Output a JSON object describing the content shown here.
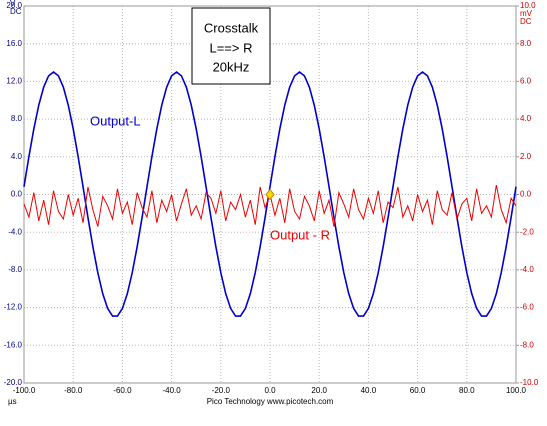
{
  "chart_data": {
    "type": "line",
    "annotations": [
      "Crosstalk",
      "L==> R",
      "20kHz"
    ],
    "y_label": [
      "V",
      "DC"
    ],
    "y2_label": [
      "mV",
      "DC"
    ],
    "x_label": "µs",
    "footer": "Pico Technology  www.picotech.com",
    "grid": true,
    "xlim": [
      -100,
      100
    ],
    "xticks": [
      {
        "value": -100,
        "label": "-100.0"
      },
      {
        "value": -80,
        "label": "-80.0"
      },
      {
        "value": -60,
        "label": "-60.0"
      },
      {
        "value": -40,
        "label": "-40.0"
      },
      {
        "value": -20,
        "label": "-20.0"
      },
      {
        "value": 0,
        "label": "0.0"
      },
      {
        "value": 20,
        "label": "20.0"
      },
      {
        "value": 40,
        "label": "40.0"
      },
      {
        "value": 60,
        "label": "60.0"
      },
      {
        "value": 80,
        "label": "80.0"
      },
      {
        "value": 100,
        "label": "100.0"
      }
    ],
    "ylim": [
      -20,
      20
    ],
    "yticks": [
      {
        "value": 20,
        "label": "20.0"
      },
      {
        "value": 16,
        "label": "16.0"
      },
      {
        "value": 12,
        "label": "12.0"
      },
      {
        "value": 8,
        "label": "8.0"
      },
      {
        "value": 4,
        "label": "4.0"
      },
      {
        "value": 0,
        "label": "0.0"
      },
      {
        "value": -4,
        "label": "-4.0"
      },
      {
        "value": -8,
        "label": "-8.0"
      },
      {
        "value": -12,
        "label": "-12.0"
      },
      {
        "value": -16,
        "label": "-16.0"
      },
      {
        "value": -20,
        "label": "-20.0"
      }
    ],
    "y2lim": [
      -10,
      10
    ],
    "y2ticks": [
      {
        "value": 10,
        "label": "10.0"
      },
      {
        "value": 8,
        "label": "8.0"
      },
      {
        "value": 6,
        "label": "6.0"
      },
      {
        "value": 4,
        "label": "4.0"
      },
      {
        "value": 2,
        "label": "2.0"
      },
      {
        "value": 0,
        "label": "0.0"
      },
      {
        "value": -2,
        "label": "-2.0"
      },
      {
        "value": -4,
        "label": "-4.0"
      },
      {
        "value": -6,
        "label": "-6.0"
      },
      {
        "value": -8,
        "label": "-8.0"
      },
      {
        "value": -10,
        "label": "-10.0"
      }
    ],
    "x": [
      -100,
      -98,
      -96,
      -94,
      -92,
      -90,
      -88,
      -86,
      -84,
      -82,
      -80,
      -78,
      -76,
      -74,
      -72,
      -70,
      -68,
      -66,
      -64,
      -62,
      -60,
      -58,
      -56,
      -54,
      -52,
      -50,
      -48,
      -46,
      -44,
      -42,
      -40,
      -38,
      -36,
      -34,
      -32,
      -30,
      -28,
      -26,
      -24,
      -22,
      -20,
      -18,
      -16,
      -14,
      -12,
      -10,
      -8,
      -6,
      -4,
      -2,
      0,
      2,
      4,
      6,
      8,
      10,
      12,
      14,
      16,
      18,
      20,
      22,
      24,
      26,
      28,
      30,
      32,
      34,
      36,
      38,
      40,
      42,
      44,
      46,
      48,
      50,
      52,
      54,
      56,
      58,
      60,
      62,
      64,
      66,
      68,
      70,
      72,
      74,
      76,
      78,
      80,
      82,
      84,
      86,
      88,
      90,
      92,
      94,
      96,
      98,
      100
    ],
    "series": [
      {
        "name": "Output-L",
        "color": "#0000cc",
        "values": [
          0.82,
          4.02,
          6.97,
          9.48,
          11.39,
          12.59,
          13,
          12.59,
          11.39,
          9.48,
          6.97,
          4.02,
          0.82,
          -2.44,
          -5.54,
          -8.29,
          -10.52,
          -12.09,
          -12.9,
          -12.9,
          -12.09,
          -10.52,
          -8.29,
          -5.54,
          -2.44,
          0.82,
          4.02,
          6.97,
          9.48,
          11.39,
          12.59,
          13,
          12.59,
          11.39,
          9.48,
          6.97,
          4.02,
          0.82,
          -2.44,
          -5.54,
          -8.29,
          -10.52,
          -12.09,
          -12.9,
          -12.9,
          -12.09,
          -10.52,
          -8.29,
          -5.54,
          -2.44,
          0.82,
          4.02,
          6.97,
          9.48,
          11.39,
          12.59,
          13,
          12.59,
          11.39,
          9.48,
          6.97,
          4.02,
          0.82,
          -2.44,
          -5.54,
          -8.29,
          -10.52,
          -12.09,
          -12.9,
          -12.9,
          -12.09,
          -10.52,
          -8.29,
          -5.54,
          -2.44,
          0.82,
          4.02,
          6.97,
          9.48,
          11.39,
          12.59,
          13,
          12.59,
          11.39,
          9.48,
          6.97,
          4.02,
          0.82,
          -2.44,
          -5.54,
          -8.29,
          -10.52,
          -12.09,
          -12.9,
          -12.9,
          -12.09,
          -10.52,
          -8.29,
          -5.54,
          -2.44,
          0.82
        ]
      },
      {
        "name": "Output - R",
        "color": "#ee0000",
        "axis": "y2",
        "values": [
          -0.5,
          -1.2,
          0.1,
          -1.4,
          -0.3,
          -1.6,
          0.2,
          -0.9,
          -1.3,
          0.0,
          -1.1,
          -0.2,
          -1.5,
          0.4,
          -0.8,
          -1.7,
          -0.1,
          -0.6,
          -1.3,
          0.3,
          -1.0,
          -0.4,
          -1.6,
          0.1,
          -0.7,
          -1.2,
          0.2,
          -1.5,
          -0.3,
          -0.9,
          0.0,
          -1.4,
          -0.5,
          0.3,
          -1.1,
          -0.6,
          -1.3,
          0.1,
          -0.2,
          -1.0,
          0.2,
          -1.4,
          -0.4,
          -0.8,
          0.0,
          -1.2,
          -0.3,
          -1.6,
          0.4,
          -0.7,
          0.0,
          -1.1,
          -0.2,
          -1.5,
          0.3,
          -0.9,
          -1.3,
          -0.1,
          -0.6,
          -1.4,
          0.2,
          -1.0,
          -0.3,
          -1.7,
          0.1,
          -0.5,
          -1.2,
          0.3,
          -0.8,
          -1.3,
          -0.2,
          -1.0,
          0.2,
          -1.5,
          -0.4,
          -0.7,
          0.4,
          -1.2,
          -0.6,
          -1.4,
          0.0,
          -0.9,
          -0.3,
          -1.6,
          0.2,
          -0.8,
          -1.1,
          0.1,
          -1.3,
          -0.5,
          -0.2,
          -1.4,
          0.3,
          -1.0,
          -0.6,
          -1.2,
          0.5,
          -0.8,
          -1.5,
          -0.2,
          -0.6
        ]
      }
    ]
  }
}
